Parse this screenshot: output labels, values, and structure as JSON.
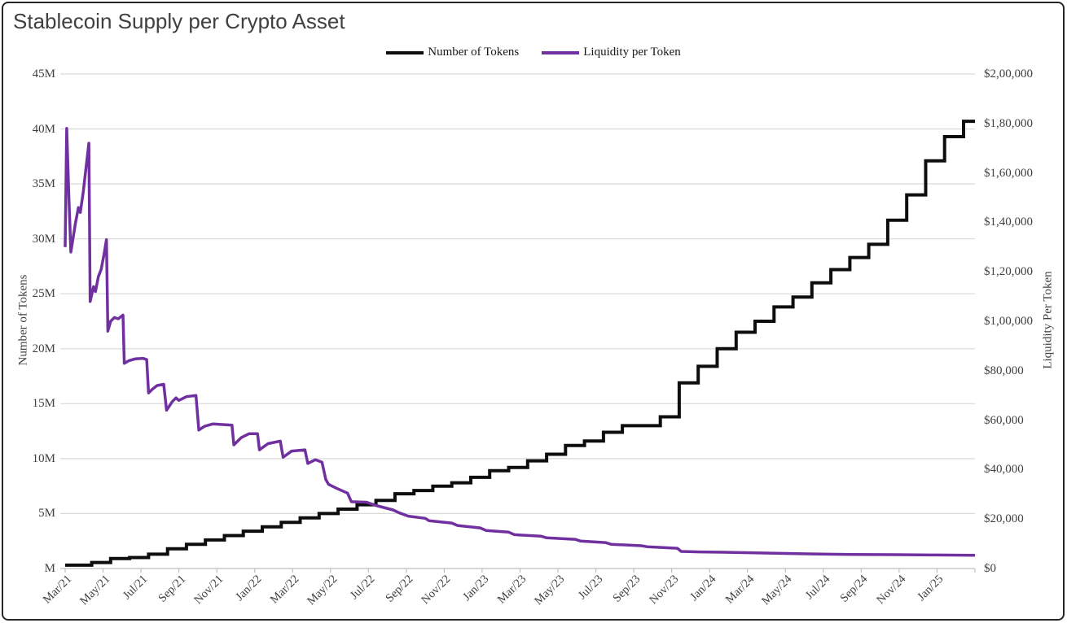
{
  "title": "Stablecoin Supply per Crypto Asset",
  "legend": {
    "items": [
      {
        "label": "Number of Tokens",
        "color": "#0d0d0d"
      },
      {
        "label": "Liquidity per Token",
        "color": "#7030a0"
      }
    ]
  },
  "axes": {
    "left": {
      "title": "Number of Tokens",
      "ticks": [
        "45M",
        "40M",
        "35M",
        "30M",
        "25M",
        "20M",
        "15M",
        "10M",
        "5M",
        "M"
      ]
    },
    "right": {
      "title": "Liquidity Per Token",
      "ticks": [
        "$2,00,000",
        "$1,80,000",
        "$1,60,000",
        "$1,40,000",
        "$1,20,000",
        "$1,00,000",
        "$80,000",
        "$60,000",
        "$40,000",
        "$20,000",
        "$0"
      ]
    },
    "x": {
      "ticks": [
        "Mar/21",
        "May/21",
        "Jul/21",
        "Sep/21",
        "Nov/21",
        "Jan/22",
        "Mar/22",
        "May/22",
        "Jul/22",
        "Sep/22",
        "Nov/22",
        "Jan/23",
        "Mar/23",
        "May/23",
        "Jul/23",
        "Sep/23",
        "Nov/23",
        "Jan/24",
        "Mar/24",
        "May/24",
        "Jul/24",
        "Sep/24",
        "Nov/24",
        "Jan/25"
      ]
    }
  },
  "colors": {
    "gridline": "#d9d9d9",
    "axis_line": "#bfbfbf",
    "title_text": "#404040",
    "tick_text": "#3f3f3f"
  },
  "chart_data": {
    "type": "line",
    "title": "Stablecoin Supply per Crypto Asset",
    "xlabel": "",
    "left_ylabel": "Number of Tokens",
    "right_ylabel": "Liquidity Per Token",
    "left_ylim_millions": [
      0,
      45
    ],
    "right_ylim_usd": [
      0,
      200000
    ],
    "grid": "horizontal",
    "legend_position": "top-center",
    "x_unit": "months since Mar 2021, ticks every 2 months Mar/21 - Jan/25, data ends Mar/25",
    "series": [
      {
        "name": "Number of Tokens",
        "axis": "left",
        "color": "#0d0d0d",
        "line_style": "step",
        "unit": "millions of tokens",
        "frequency": "monthly",
        "categories": [
          "Mar/21",
          "Apr/21",
          "May/21",
          "Jun/21",
          "Jul/21",
          "Aug/21",
          "Sep/21",
          "Oct/21",
          "Nov/21",
          "Dec/21",
          "Jan/22",
          "Feb/22",
          "Mar/22",
          "Apr/22",
          "May/22",
          "Jun/22",
          "Jul/22",
          "Aug/22",
          "Sep/22",
          "Oct/22",
          "Nov/22",
          "Dec/22",
          "Jan/23",
          "Feb/23",
          "Mar/23",
          "Apr/23",
          "May/23",
          "Jun/23",
          "Jul/23",
          "Aug/23",
          "Sep/23",
          "Oct/23",
          "Nov/23",
          "Dec/23",
          "Jan/24",
          "Feb/24",
          "Mar/24",
          "Apr/24",
          "May/24",
          "Jun/24",
          "Jul/24",
          "Aug/24",
          "Sep/24",
          "Oct/24",
          "Nov/24",
          "Dec/24",
          "Jan/25",
          "Feb/25",
          "Mar/25"
        ],
        "values_millions": [
          0.3,
          0.55,
          0.9,
          1.0,
          1.3,
          1.8,
          2.2,
          2.6,
          3.0,
          3.4,
          3.8,
          4.2,
          4.6,
          5.0,
          5.4,
          5.8,
          6.2,
          6.8,
          7.1,
          7.5,
          7.8,
          8.3,
          8.9,
          9.2,
          9.8,
          10.4,
          11.2,
          11.6,
          12.4,
          13.0,
          13.0,
          13.8,
          16.9,
          18.4,
          20.0,
          21.5,
          22.5,
          23.8,
          24.7,
          26.0,
          27.2,
          28.3,
          29.5,
          31.7,
          34.0,
          37.1,
          39.3,
          40.7,
          40.7
        ]
      },
      {
        "name": "Liquidity per Token",
        "axis": "right",
        "color": "#7030a0",
        "line_style": "linear",
        "unit": "USD per token",
        "points_month_usd": [
          [
            0,
            130000
          ],
          [
            0.08,
            178000
          ],
          [
            0.2,
            149000
          ],
          [
            0.3,
            128000
          ],
          [
            0.55,
            140000
          ],
          [
            0.7,
            146000
          ],
          [
            0.8,
            144000
          ],
          [
            0.95,
            152000
          ],
          [
            1.1,
            162000
          ],
          [
            1.25,
            172000
          ],
          [
            1.32,
            108000
          ],
          [
            1.5,
            114000
          ],
          [
            1.6,
            112000
          ],
          [
            1.75,
            118000
          ],
          [
            1.9,
            121000
          ],
          [
            2.05,
            127000
          ],
          [
            2.18,
            133000
          ],
          [
            2.25,
            96000
          ],
          [
            2.4,
            100000
          ],
          [
            2.6,
            101500
          ],
          [
            2.8,
            101000
          ],
          [
            3.05,
            102500
          ],
          [
            3.12,
            83000
          ],
          [
            3.35,
            84000
          ],
          [
            3.7,
            84800
          ],
          [
            4.1,
            85000
          ],
          [
            4.3,
            84500
          ],
          [
            4.4,
            71000
          ],
          [
            4.6,
            72500
          ],
          [
            4.85,
            74000
          ],
          [
            5.2,
            74500
          ],
          [
            5.35,
            64000
          ],
          [
            5.65,
            67500
          ],
          [
            5.85,
            69000
          ],
          [
            6.0,
            68000
          ],
          [
            6.4,
            69500
          ],
          [
            6.9,
            70000
          ],
          [
            7.05,
            56000
          ],
          [
            7.35,
            57500
          ],
          [
            7.8,
            58500
          ],
          [
            8.8,
            58000
          ],
          [
            8.9,
            50000
          ],
          [
            9.3,
            53000
          ],
          [
            9.7,
            54500
          ],
          [
            10.15,
            54500
          ],
          [
            10.25,
            48000
          ],
          [
            10.7,
            50500
          ],
          [
            11.35,
            51500
          ],
          [
            11.5,
            45000
          ],
          [
            11.95,
            47500
          ],
          [
            12.65,
            48000
          ],
          [
            12.8,
            42500
          ],
          [
            13.2,
            44000
          ],
          [
            13.55,
            43000
          ],
          [
            13.75,
            36000
          ],
          [
            13.9,
            34000
          ],
          [
            14.3,
            32500
          ],
          [
            14.9,
            30500
          ],
          [
            15.1,
            27000
          ],
          [
            15.9,
            26800
          ],
          [
            16.4,
            25500
          ],
          [
            17.3,
            23700
          ],
          [
            17.6,
            22600
          ],
          [
            18.1,
            21200
          ],
          [
            19.0,
            20300
          ],
          [
            19.2,
            19300
          ],
          [
            20.4,
            18400
          ],
          [
            20.7,
            17400
          ],
          [
            21.9,
            16400
          ],
          [
            22.2,
            15400
          ],
          [
            23.4,
            14700
          ],
          [
            23.7,
            13700
          ],
          [
            25.1,
            13100
          ],
          [
            25.4,
            12400
          ],
          [
            26.9,
            11800
          ],
          [
            27.2,
            11100
          ],
          [
            28.5,
            10500
          ],
          [
            28.8,
            9800
          ],
          [
            30.4,
            9200
          ],
          [
            30.7,
            8800
          ],
          [
            32.3,
            8200
          ],
          [
            32.5,
            6900
          ],
          [
            33.5,
            6700
          ],
          [
            35.3,
            6500
          ],
          [
            37.5,
            6200
          ],
          [
            39.5,
            5900
          ],
          [
            41.5,
            5700
          ],
          [
            43.9,
            5600
          ],
          [
            46,
            5450
          ],
          [
            48,
            5350
          ]
        ]
      }
    ]
  }
}
